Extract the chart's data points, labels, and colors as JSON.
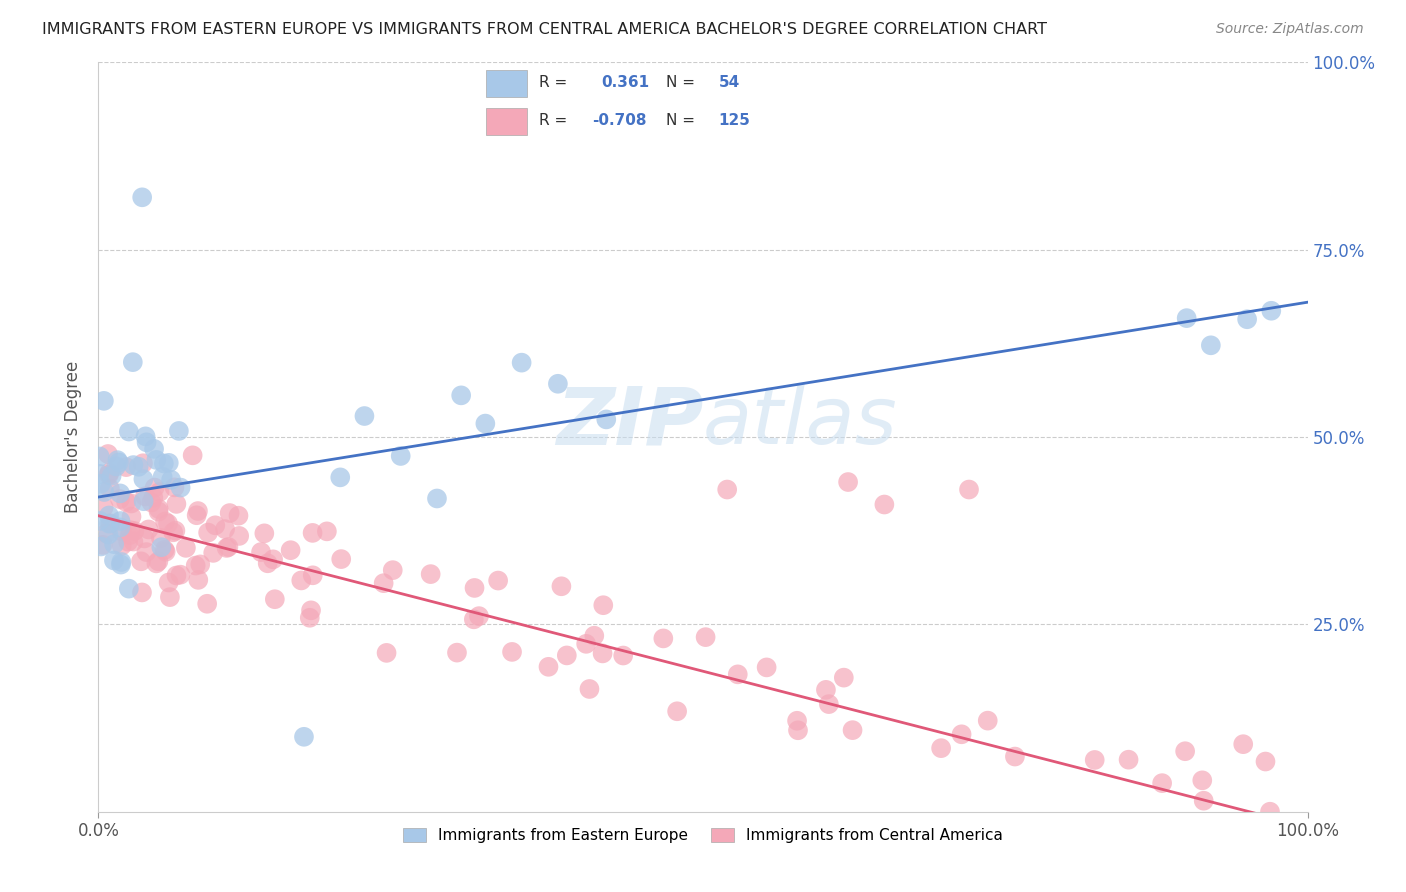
{
  "title": "IMMIGRANTS FROM EASTERN EUROPE VS IMMIGRANTS FROM CENTRAL AMERICA BACHELOR'S DEGREE CORRELATION CHART",
  "source": "Source: ZipAtlas.com",
  "ylabel": "Bachelor's Degree",
  "xlim": [
    0,
    1.0
  ],
  "ylim": [
    0,
    1.0
  ],
  "xticks": [
    0.0,
    1.0
  ],
  "xtick_labels": [
    "0.0%",
    "100.0%"
  ],
  "yticks": [
    0.25,
    0.5,
    0.75,
    1.0
  ],
  "ytick_labels": [
    "25.0%",
    "50.0%",
    "75.0%",
    "100.0%"
  ],
  "blue_R": 0.361,
  "blue_N": 54,
  "pink_R": -0.708,
  "pink_N": 125,
  "blue_color": "#A8C8E8",
  "pink_color": "#F4A8B8",
  "blue_line_color": "#4472C4",
  "pink_line_color": "#E05878",
  "watermark": "ZIPAtlas",
  "watermark_color": "#C8DDF0",
  "background_color": "#FFFFFF",
  "grid_color": "#CCCCCC",
  "title_color": "#222222",
  "axis_label_color": "#555555",
  "tick_color_right": "#4472C4",
  "blue_line_x0": 0.0,
  "blue_line_y0": 0.42,
  "blue_line_x1": 1.0,
  "blue_line_y1": 0.68,
  "pink_line_x0": 0.0,
  "pink_line_y0": 0.395,
  "pink_line_x1": 1.0,
  "pink_line_y1": -0.02
}
